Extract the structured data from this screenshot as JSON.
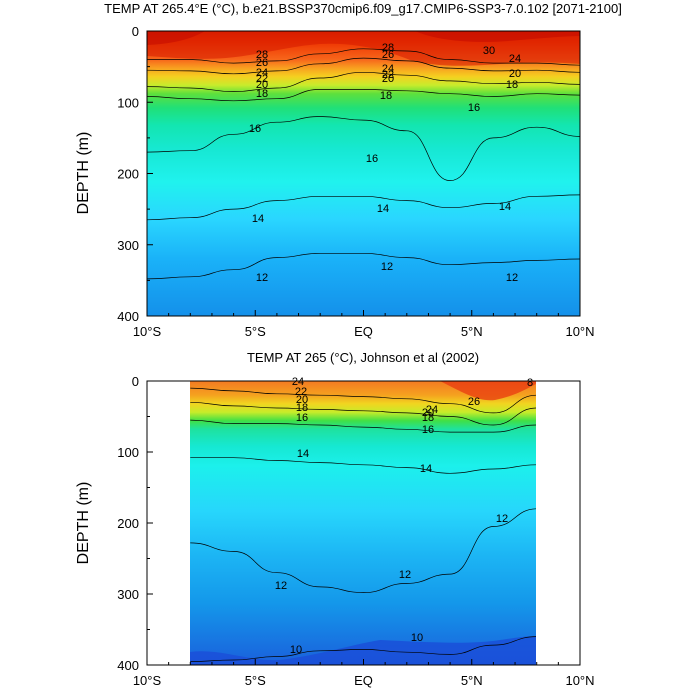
{
  "chart_data": [
    {
      "type": "heatmap",
      "title": "TEMP AT 265.4°E (°C), b.e21.BSSP370cmip6.f09_g17.CMIP6-SSP3-7.0.102 [2071-2100]",
      "xlabel": "",
      "ylabel": "DEPTH (m)",
      "x_ticks": [
        "10°S",
        "5°S",
        "EQ",
        "5°N",
        "10°N"
      ],
      "y_ticks": [
        "0",
        "100",
        "200",
        "300",
        "400"
      ],
      "xlim": [
        -10,
        10
      ],
      "ylim": [
        0,
        400
      ],
      "y_inverted": true,
      "x": [
        -10,
        -8,
        -6,
        -4,
        -2,
        0,
        2,
        4,
        6,
        8,
        10
      ],
      "isotherm_depths": [
        {
          "level": 28,
          "depth": [
            40,
            40,
            45,
            42,
            32,
            25,
            28,
            40,
            45,
            45,
            48
          ]
        },
        {
          "level": 24,
          "depth": [
            55,
            56,
            60,
            56,
            46,
            38,
            42,
            52,
            56,
            55,
            58
          ]
        },
        {
          "level": 20,
          "depth": [
            78,
            80,
            85,
            80,
            66,
            58,
            62,
            70,
            74,
            72,
            75
          ]
        },
        {
          "level": 18,
          "depth": [
            92,
            95,
            98,
            95,
            82,
            82,
            84,
            88,
            92,
            88,
            90
          ]
        },
        {
          "level": 16,
          "depth": [
            170,
            168,
            145,
            128,
            120,
            125,
            140,
            210,
            150,
            135,
            148
          ]
        },
        {
          "level": 14,
          "depth": [
            265,
            262,
            250,
            238,
            232,
            232,
            238,
            248,
            242,
            232,
            230
          ]
        },
        {
          "level": 12,
          "depth": [
            348,
            345,
            335,
            318,
            312,
            312,
            318,
            328,
            325,
            322,
            320
          ]
        }
      ],
      "labels": [
        "28",
        "26",
        "24",
        "22",
        "20",
        "18",
        "16",
        "14",
        "12",
        "30"
      ]
    },
    {
      "type": "heatmap",
      "title": "TEMP AT 265 (°C), Johnson et al (2002)",
      "xlabel": "",
      "ylabel": "DEPTH (m)",
      "x_ticks": [
        "10°S",
        "5°S",
        "EQ",
        "5°N",
        "10°N"
      ],
      "y_ticks": [
        "0",
        "100",
        "200",
        "300",
        "400"
      ],
      "xlim": [
        -10,
        10
      ],
      "ylim": [
        0,
        400
      ],
      "y_inverted": true,
      "data_range_x": [
        -8,
        8
      ],
      "x": [
        -8,
        -6,
        -4,
        -2,
        0,
        2,
        4,
        6,
        8
      ],
      "isotherm_depths": [
        {
          "level": 24,
          "depth": [
            10,
            14,
            18,
            20,
            22,
            25,
            32,
            45,
            20
          ]
        },
        {
          "level": 20,
          "depth": [
            30,
            35,
            38,
            40,
            42,
            45,
            50,
            62,
            38
          ]
        },
        {
          "level": 16,
          "depth": [
            55,
            60,
            60,
            62,
            65,
            68,
            72,
            72,
            62
          ]
        },
        {
          "level": 14,
          "depth": [
            108,
            108,
            112,
            115,
            118,
            122,
            130,
            124,
            118
          ]
        },
        {
          "level": 12,
          "depth": [
            228,
            240,
            270,
            290,
            298,
            285,
            272,
            205,
            180
          ]
        },
        {
          "level": 10,
          "depth": [
            395,
            393,
            388,
            380,
            378,
            382,
            385,
            372,
            360
          ]
        }
      ],
      "labels": [
        "24",
        "22",
        "20",
        "18",
        "16",
        "26",
        "14",
        "12",
        "10",
        "8"
      ]
    }
  ]
}
